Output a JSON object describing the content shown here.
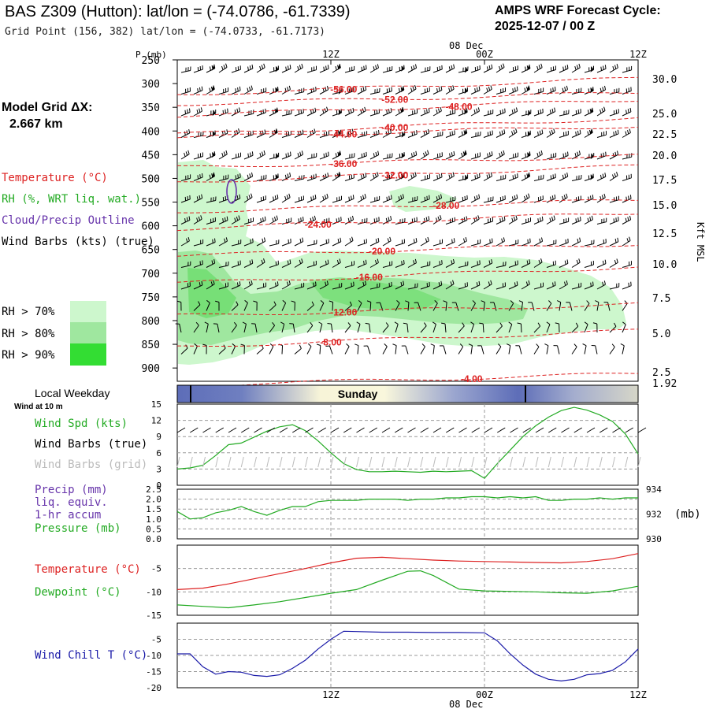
{
  "header": {
    "title": "BAS Z309 (Hutton):  lat/lon = (-74.0786, -61.7339)",
    "grid_point": "Grid Point (156, 382) lat/lon = (-74.0733, -61.7173)",
    "cycle_label": "AMPS WRF Forecast Cycle:",
    "cycle_value": "2025-12-07 / 00  Z"
  },
  "left_panel": {
    "grid_label": "Model Grid ΔX:",
    "grid_value": "2.667 km",
    "legend_temperature": "Temperature (°C)",
    "legend_rh": "RH (%, WRT liq. wat.)",
    "legend_cloud": "Cloud/Precip Outline",
    "legend_wind": "Wind Barbs (kts) (true)",
    "rh_levels": [
      "RH > 70%",
      "RH > 80%",
      "RH > 90%"
    ],
    "local_weekday": "Local Weekday",
    "wind_at": "Wind at 10 m",
    "wind_spd": "Wind Spd (kts)",
    "wind_barbs_true": "Wind Barbs (true)",
    "wind_barbs_grid": "Wind Barbs (grid)",
    "precip": "Precip (mm)",
    "liq_equiv": "liq. equiv.",
    "accum": "1-hr accum",
    "pressure": "Pressure (mb)",
    "temperature": "Temperature (°C)",
    "dewpoint": "Dewpoint (°C)",
    "wind_chill": "Wind Chill T (°C)"
  },
  "colors": {
    "temperature": "#dd2222",
    "rh": "#22aa22",
    "cloud": "#6633aa",
    "wind_chill": "#1a1aa8",
    "rh70": "#cdf7cd",
    "rh80": "#9fe79f",
    "rh90": "#33dd33"
  },
  "chart_data": [
    {
      "type": "line",
      "panel": "time-height cross section",
      "ylabel": "P (mb)",
      "y2label": "Kft MSL",
      "top_date_label": "08 Dec",
      "x_ticks": [
        "12Z",
        "00Z",
        "12Z"
      ],
      "pressure_levels": [
        "250",
        "300",
        "350",
        "400",
        "450",
        "500",
        "550",
        "600",
        "650",
        "700",
        "750",
        "800",
        "850",
        "900"
      ],
      "kft_labels": [
        "30.0",
        "25.0",
        "22.5",
        "20.0",
        "17.5",
        "15.0",
        "12.5",
        "10.0",
        "7.5",
        "5.0",
        "2.5",
        "1.92"
      ],
      "temperature_contours": [
        {
          "label": "-56.00",
          "at_hour": 13,
          "at_p": 311
        },
        {
          "label": "-52.00",
          "at_hour": 17,
          "at_p": 332
        },
        {
          "label": "-48.00",
          "at_hour": 22,
          "at_p": 347
        },
        {
          "label": "-44.00",
          "at_hour": 13,
          "at_p": 405
        },
        {
          "label": "-40.00",
          "at_hour": 17,
          "at_p": 391
        },
        {
          "label": "-36.00",
          "at_hour": 13,
          "at_p": 468
        },
        {
          "label": "-32.00",
          "at_hour": 17,
          "at_p": 492
        },
        {
          "label": "-28.00",
          "at_hour": 21,
          "at_p": 556
        },
        {
          "label": "-24.00",
          "at_hour": 11,
          "at_p": 596
        },
        {
          "label": "-20.00",
          "at_hour": 16,
          "at_p": 652
        },
        {
          "label": "-16.00",
          "at_hour": 15,
          "at_p": 707
        },
        {
          "label": "-12.00",
          "at_hour": 13,
          "at_p": 781
        },
        {
          "label": "-8.00",
          "at_hour": 12,
          "at_p": 844
        },
        {
          "label": "-4.00",
          "at_hour": 23,
          "at_p": 921
        }
      ]
    },
    {
      "type": "line",
      "panel": "weekday",
      "categories": [
        "Sunday"
      ]
    },
    {
      "type": "line",
      "panel": "wind speed",
      "ylim": [
        0,
        15
      ],
      "y_ticks": [
        "15",
        "12",
        "9",
        "6",
        "3",
        "0"
      ],
      "series": [
        {
          "name": "Wind Spd (kts)",
          "x": [
            0,
            1,
            2,
            3,
            4,
            5,
            6,
            7,
            8,
            9,
            10,
            11,
            12,
            13,
            14,
            15,
            16,
            17,
            18,
            19,
            20,
            21,
            22,
            23,
            24,
            25,
            26,
            27,
            28,
            29,
            30,
            31,
            32,
            33,
            34,
            35,
            36
          ],
          "values": [
            3,
            3.2,
            3.7,
            5.5,
            7.5,
            7.8,
            8.9,
            10,
            10.8,
            11.2,
            10.1,
            8.2,
            6,
            4,
            2.9,
            2.5,
            2.5,
            2.6,
            2.5,
            2.4,
            2.6,
            2.5,
            2.6,
            2.7,
            1.3,
            4,
            6.5,
            9,
            11,
            12.6,
            13.8,
            14.4,
            13.9,
            13,
            11.8,
            9.5,
            5.8
          ]
        }
      ]
    },
    {
      "type": "line",
      "panel": "precip / pressure",
      "y_ticks_left": [
        "2.5",
        "2.0",
        "1.5",
        "1.0",
        "0.5",
        "0.0"
      ],
      "y_ticks_right": [
        "934",
        "932",
        "930"
      ],
      "y2label": "(mb)",
      "series": [
        {
          "name": "Pressure (mb)",
          "x": [
            0,
            1,
            2,
            3,
            4,
            5,
            6,
            7,
            8,
            9,
            10,
            11,
            12,
            13,
            14,
            15,
            16,
            17,
            18,
            19,
            20,
            21,
            22,
            23,
            24,
            25,
            26,
            27,
            28,
            29,
            30,
            31,
            32,
            33,
            34,
            35,
            36
          ],
          "values": [
            932.2,
            931.6,
            931.7,
            932.1,
            932.3,
            932.6,
            932.2,
            931.9,
            932.3,
            932.6,
            932.6,
            933.0,
            933.1,
            933.1,
            933.1,
            933.2,
            933.2,
            933.2,
            933.1,
            933.2,
            933.2,
            933.3,
            933.3,
            933.4,
            933.4,
            933.3,
            933.4,
            933.3,
            933.4,
            933.1,
            933.1,
            933.2,
            933.2,
            933.3,
            933.2,
            933.3,
            933.3
          ]
        }
      ]
    },
    {
      "type": "line",
      "panel": "temperature / dewpoint",
      "ylim": [
        -15,
        0
      ],
      "y_ticks": [
        "-5",
        "-10",
        "-15"
      ],
      "series": [
        {
          "name": "Temperature (°C)",
          "x": [
            0,
            2,
            4,
            6,
            8,
            10,
            12,
            14,
            16,
            18,
            20,
            22,
            24,
            26,
            28,
            30,
            32,
            34,
            36
          ],
          "values": [
            -9.5,
            -9.2,
            -8.3,
            -7.2,
            -6.1,
            -5,
            -3.8,
            -2.8,
            -2.6,
            -2.9,
            -3.2,
            -3.4,
            -3.5,
            -3.6,
            -3.7,
            -3.8,
            -3.5,
            -2.9,
            -1.8
          ]
        },
        {
          "name": "Dewpoint (°C)",
          "x": [
            0,
            2,
            4,
            6,
            8,
            10,
            12,
            14,
            16,
            18,
            19,
            20,
            22,
            24,
            26,
            28,
            30,
            32,
            34,
            36
          ],
          "values": [
            -12.8,
            -13.1,
            -13.4,
            -12.8,
            -12.1,
            -11.2,
            -10.3,
            -9.5,
            -7.5,
            -5.6,
            -5.5,
            -6.5,
            -9.4,
            -9.8,
            -9.9,
            -10,
            -10.2,
            -10.3,
            -9.8,
            -8.8
          ]
        }
      ]
    },
    {
      "type": "line",
      "panel": "wind chill",
      "ylim": [
        -20,
        0
      ],
      "y_ticks": [
        "-5",
        "-10",
        "-15",
        "-20"
      ],
      "x_ticks": [
        "12Z",
        "00Z",
        "12Z"
      ],
      "bottom_date_label": "08 Dec",
      "series": [
        {
          "name": "Wind Chill T (°C)",
          "x": [
            0,
            1,
            2,
            3,
            4,
            5,
            6,
            7,
            8,
            9,
            10,
            11,
            12,
            13,
            14,
            16,
            18,
            20,
            22,
            24,
            25,
            26,
            27,
            28,
            29,
            30,
            31,
            32,
            33,
            34,
            35,
            36
          ],
          "values": [
            -9.5,
            -9.5,
            -13.5,
            -15.8,
            -15,
            -15.2,
            -16.2,
            -16.5,
            -16,
            -14,
            -11.5,
            -8,
            -5,
            -2.5,
            -2.6,
            -2.8,
            -2.8,
            -2.9,
            -2.9,
            -3,
            -5.5,
            -9.5,
            -13,
            -15.8,
            -17.4,
            -17.9,
            -17.4,
            -16,
            -15.6,
            -14.6,
            -12,
            -8
          ]
        }
      ]
    }
  ]
}
